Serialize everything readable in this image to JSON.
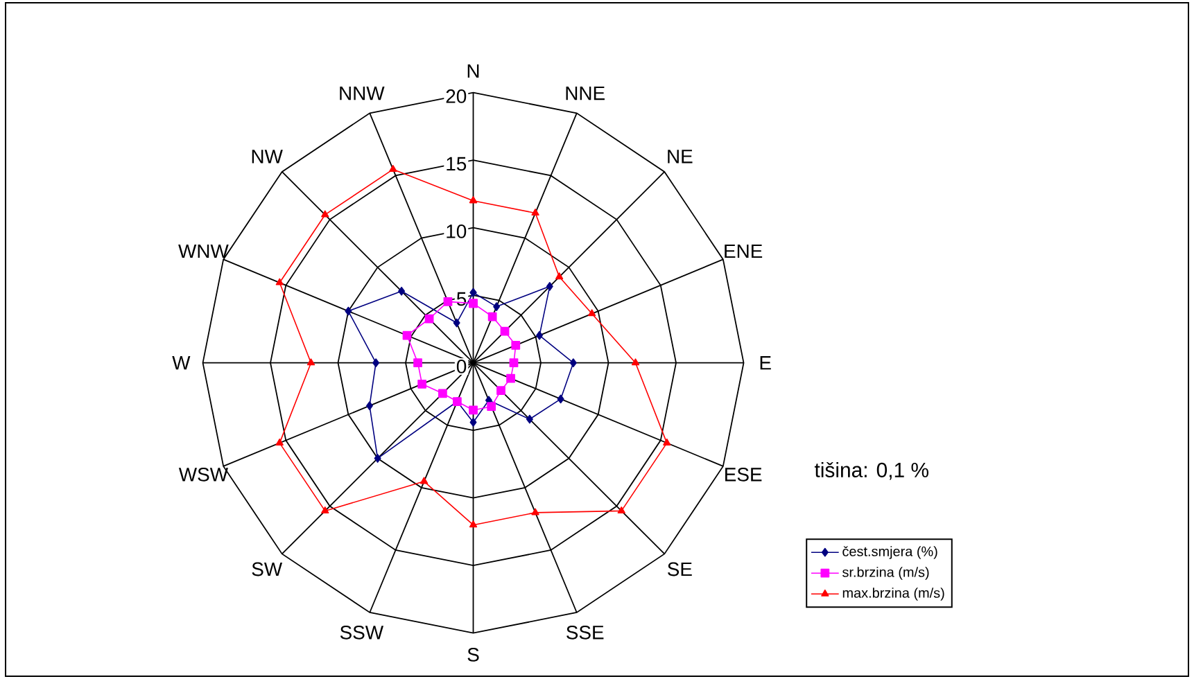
{
  "chart_data": {
    "type": "radar",
    "categories": [
      "N",
      "NNE",
      "NE",
      "ENE",
      "E",
      "ESE",
      "SE",
      "SSE",
      "S",
      "SSW",
      "SW",
      "WSW",
      "W",
      "WNW",
      "NW",
      "NNW"
    ],
    "series": [
      {
        "name": "čest.smjera (%)",
        "color": "#000080",
        "marker": "diamond",
        "values": [
          5.2,
          4.5,
          8,
          5.3,
          7.4,
          7,
          5.9,
          3,
          4.4,
          3.1,
          10,
          8.3,
          7.2,
          10,
          7.5,
          3.2
        ]
      },
      {
        "name": "sr.brzina (m/s)",
        "color": "#ff00ff",
        "marker": "square",
        "values": [
          4.4,
          3.7,
          3.3,
          3.4,
          3,
          3,
          2.9,
          3.5,
          3.5,
          3.1,
          3.2,
          4.1,
          4.1,
          5.3,
          4.6,
          4.9
        ]
      },
      {
        "name": "max.brzina (m/s)",
        "color": "#ff0000",
        "marker": "triangle",
        "values": [
          12,
          12,
          9,
          9.5,
          12,
          15.5,
          15.5,
          12,
          12,
          9.5,
          15.5,
          15.5,
          12,
          15.5,
          15.5,
          15.5
        ]
      }
    ],
    "ylim": [
      0,
      20
    ],
    "yticks": [
      0,
      5,
      10,
      15,
      20
    ],
    "grid": true,
    "legend": "bottom right",
    "annotations": [
      "tišina: 0,1 %"
    ]
  }
}
